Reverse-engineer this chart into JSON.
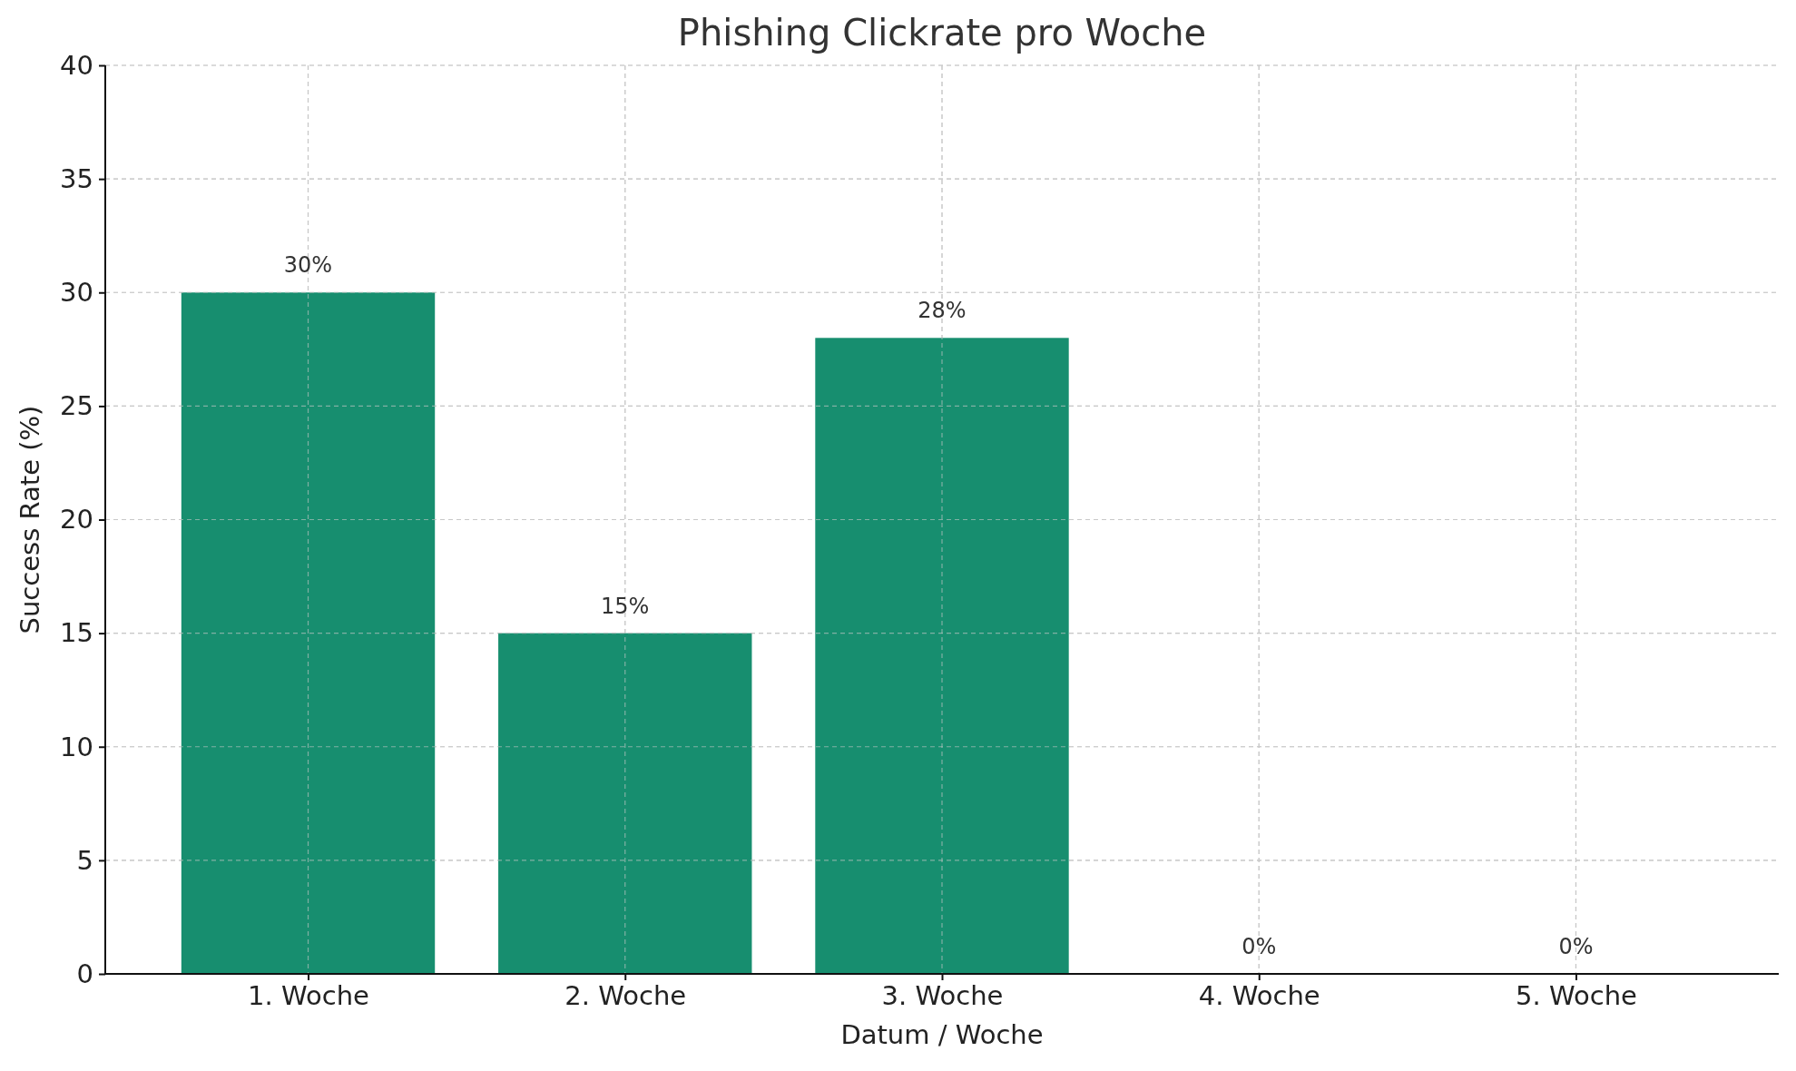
{
  "chart_data": {
    "type": "bar",
    "title": "Phishing Clickrate pro Woche",
    "xlabel": "Datum / Woche",
    "ylabel": "Success Rate (%)",
    "categories": [
      "1. Woche",
      "2. Woche",
      "3. Woche",
      "4. Woche",
      "5. Woche"
    ],
    "values": [
      30,
      15,
      28,
      0,
      0
    ],
    "color": "#178e6f",
    "value_labels": [
      "30%",
      "15%",
      "28%",
      "0%",
      "0%"
    ],
    "ylim": [
      0,
      40
    ],
    "yticks": [
      0,
      5,
      10,
      15,
      20,
      25,
      30,
      35,
      40
    ],
    "grid": true
  }
}
